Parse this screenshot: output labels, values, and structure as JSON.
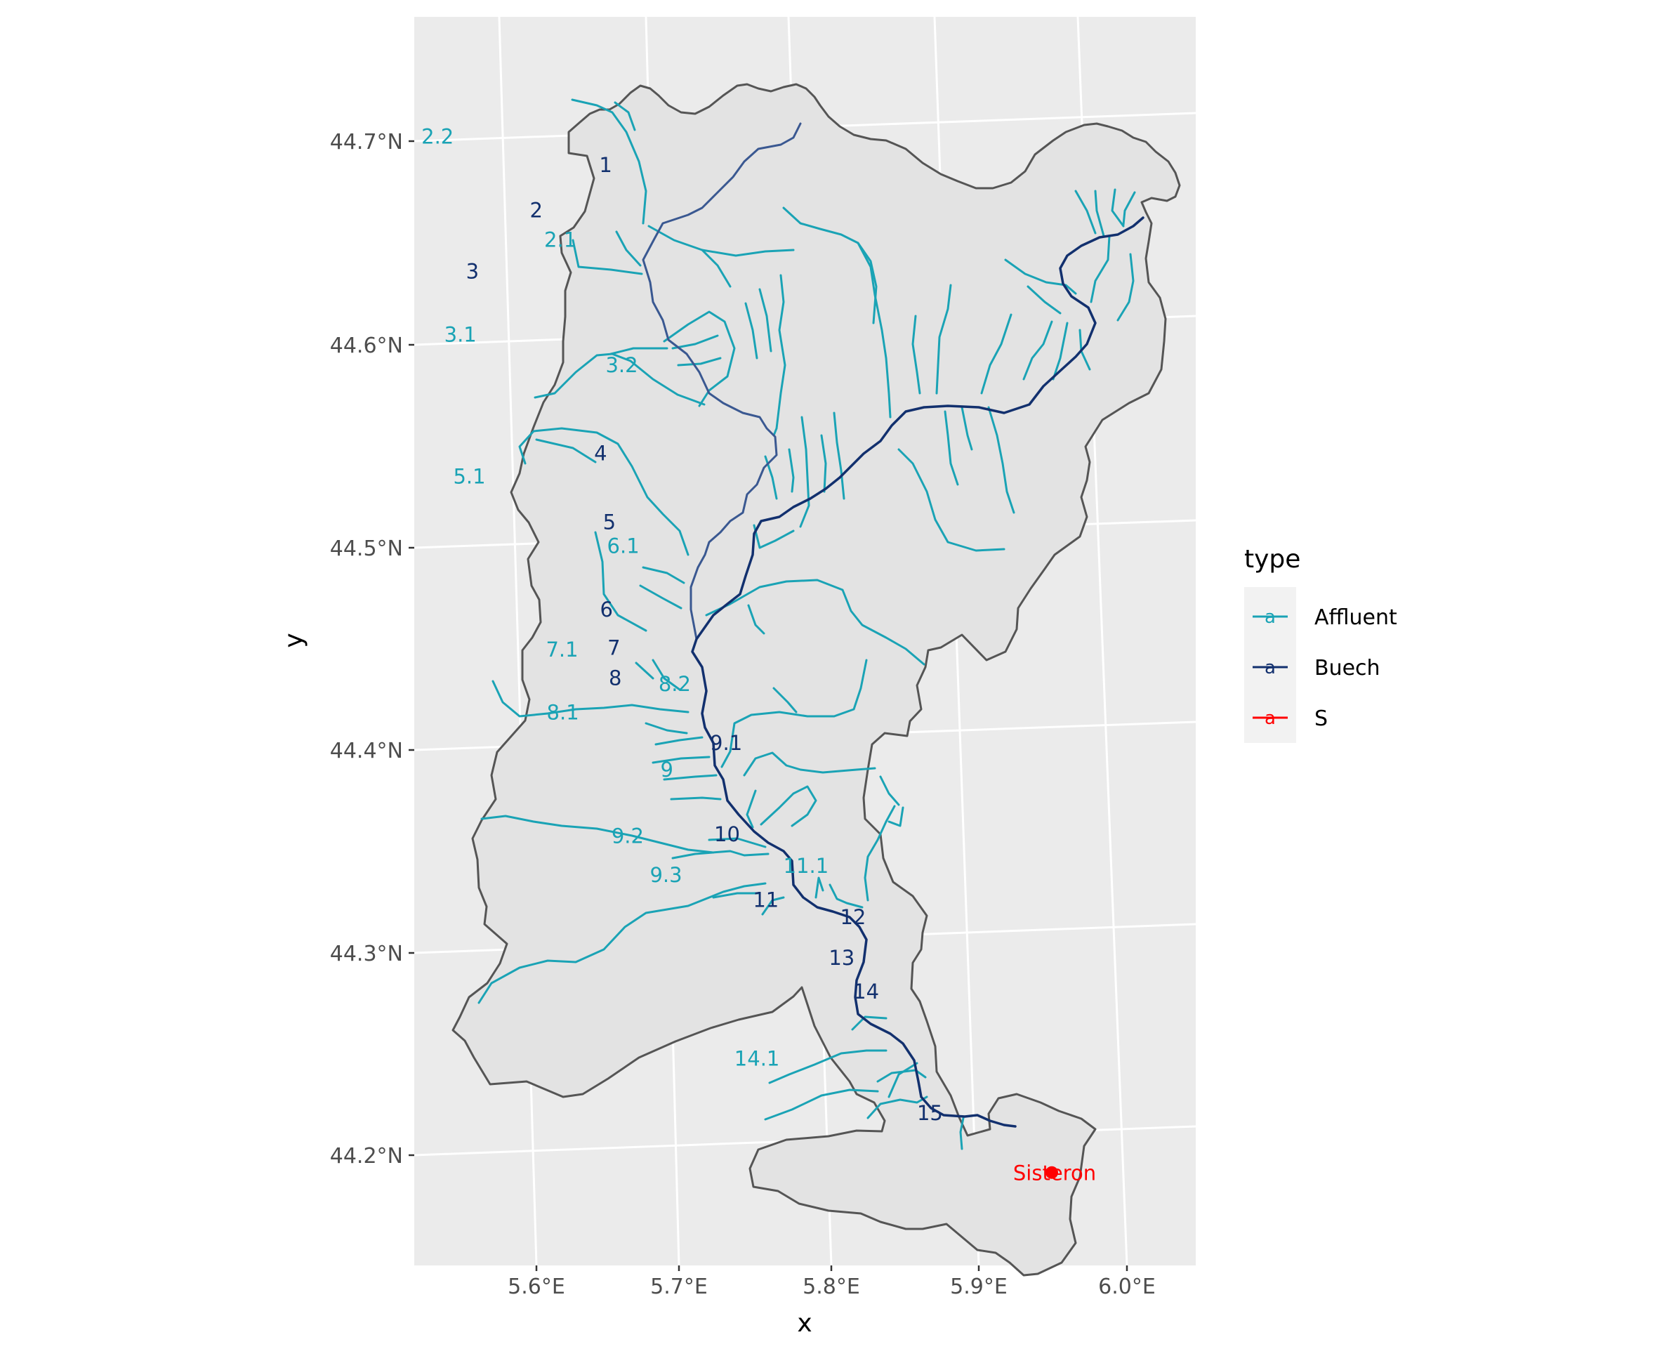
{
  "map": {
    "x_axis_title": "x",
    "y_axis_title": "y",
    "x_ticks": [
      "5.6°E",
      "5.7°E",
      "5.8°E",
      "5.9°E",
      "6.0°E"
    ],
    "y_ticks": [
      "44.7°N",
      "44.6°N",
      "44.5°N",
      "44.4°N",
      "44.3°N",
      "44.2°N"
    ],
    "extent": {
      "lon": [
        5.52,
        6.05
      ],
      "lat": [
        44.15,
        44.76
      ]
    },
    "background_color": "#ebebeb",
    "grid_color": "#ffffff",
    "basin_fill": "#e3e3e3",
    "basin_stroke": "#555555"
  },
  "legend": {
    "title": "type",
    "glyph": "a",
    "items": [
      {
        "label": "Affluent",
        "color": "#1aa3b5"
      },
      {
        "label": "Buech",
        "color": "#12306e"
      },
      {
        "label": "S",
        "color": "#ff0000"
      }
    ]
  },
  "city": {
    "label": "Sisteron",
    "color": "#ff0000",
    "lon": 5.944,
    "lat": 44.18
  },
  "segment_labels": {
    "affluent": [
      {
        "text": "2.2",
        "lon": 5.668,
        "lat": 44.698
      },
      {
        "text": "2.1",
        "lon": 5.737,
        "lat": 44.645
      },
      {
        "text": "3.1",
        "lon": 5.657,
        "lat": 44.6
      },
      {
        "text": "3.2",
        "lon": 5.761,
        "lat": 44.582
      },
      {
        "text": "5.1",
        "lon": 5.644,
        "lat": 44.53
      },
      {
        "text": "6.1",
        "lon": 5.739,
        "lat": 44.493
      },
      {
        "text": "7.1",
        "lon": 5.685,
        "lat": 44.443
      },
      {
        "text": "8.1",
        "lon": 5.677,
        "lat": 44.412
      },
      {
        "text": "8.2",
        "lon": 5.755,
        "lat": 44.424
      },
      {
        "text": "9",
        "lon": 5.739,
        "lat": 44.382
      },
      {
        "text": "9.2",
        "lon": 5.705,
        "lat": 44.35
      },
      {
        "text": "9.3",
        "lon": 5.725,
        "lat": 44.33
      },
      {
        "text": "11.1",
        "lon": 5.818,
        "lat": 44.332
      },
      {
        "text": "14.1",
        "lon": 5.761,
        "lat": 44.238
      }
    ],
    "buech": [
      {
        "text": "1",
        "lon": 5.776,
        "lat": 44.681
      },
      {
        "text": "2",
        "lon": 5.725,
        "lat": 44.66
      },
      {
        "text": "3",
        "lon": 5.674,
        "lat": 44.631
      },
      {
        "text": "4",
        "lon": 5.736,
        "lat": 44.539
      },
      {
        "text": "5",
        "lon": 5.733,
        "lat": 44.505
      },
      {
        "text": "6",
        "lon": 5.72,
        "lat": 44.462
      },
      {
        "text": "7",
        "lon": 5.72,
        "lat": 44.443
      },
      {
        "text": "8",
        "lon": 5.717,
        "lat": 44.428
      },
      {
        "text": "9.1",
        "lon": 5.781,
        "lat": 44.394
      },
      {
        "text": "10",
        "lon": 5.77,
        "lat": 44.349
      },
      {
        "text": "11",
        "lon": 5.787,
        "lat": 44.316
      },
      {
        "text": "12",
        "lon": 5.843,
        "lat": 44.306
      },
      {
        "text": "13",
        "lon": 5.83,
        "lat": 44.286
      },
      {
        "text": "14",
        "lon": 5.842,
        "lat": 44.269
      },
      {
        "text": "15",
        "lon": 5.869,
        "lat": 44.208
      }
    ]
  }
}
